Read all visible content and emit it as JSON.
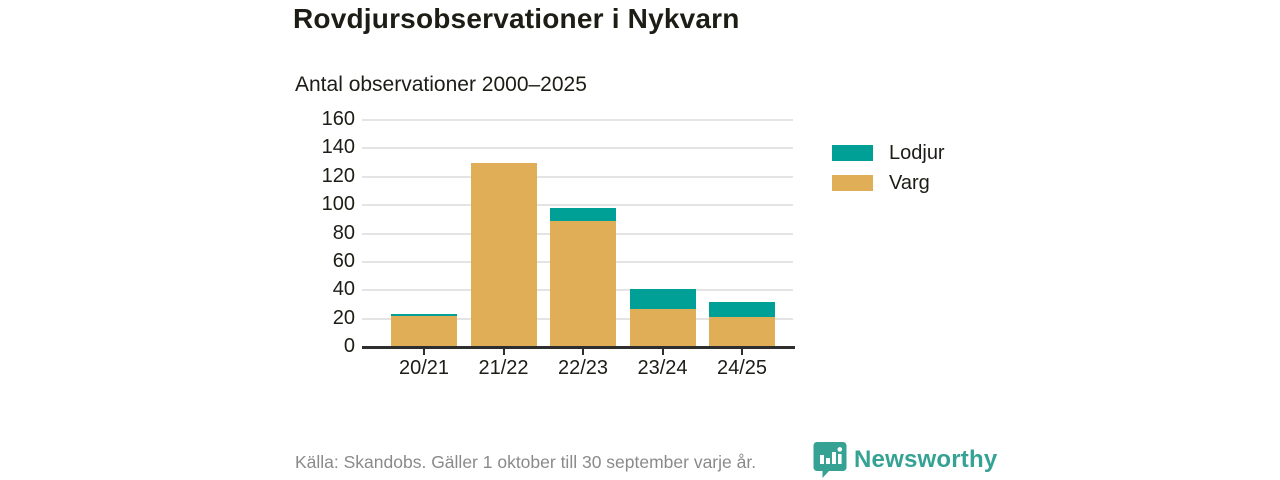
{
  "header": {
    "title": "Rovdjursobservationer i Nykvarn",
    "subtitle": "Antal observationer 2000–2025"
  },
  "chart_data": {
    "type": "bar",
    "stacked": true,
    "categories": [
      "20/21",
      "21/22",
      "22/23",
      "23/24",
      "24/25"
    ],
    "series": [
      {
        "name": "Lodjur",
        "color": "#00a096",
        "values": [
          1,
          0,
          9,
          14,
          11
        ]
      },
      {
        "name": "Varg",
        "color": "#dfae56",
        "values": [
          22,
          130,
          89,
          27,
          21
        ]
      }
    ],
    "title": "Rovdjursobservationer i Nykvarn",
    "subtitle": "Antal observationer 2000–2025",
    "xlabel": "",
    "ylabel": "",
    "ylim": [
      0,
      160
    ],
    "ytick_step": 20,
    "grid": "horizontal",
    "legend_position": "right"
  },
  "footer": {
    "source": "Källa: Skandobs. Gäller 1 oktober till 30 september varje år.",
    "brand": "Newsworthy"
  },
  "colors": {
    "lodjur": "#00a096",
    "varg": "#dfae56",
    "brand_teal": "#35a294",
    "text_dark": "#1d1d16",
    "text_muted": "#8a8a8a",
    "gridline": "#e4e4e4",
    "axis": "#2e2e2e"
  }
}
